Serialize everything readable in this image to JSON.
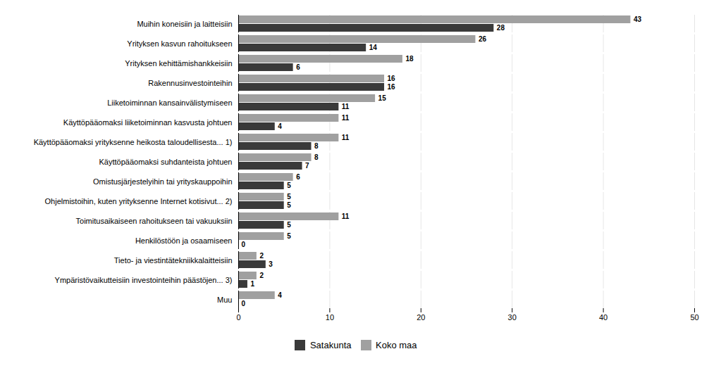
{
  "chart_data": {
    "type": "bar",
    "orientation": "horizontal",
    "categories": [
      "Muihin koneisiin ja laitteisiin",
      "Yrityksen kasvun rahoitukseen",
      "Yrityksen kehittämishankkeisiin",
      "Rakennusinvestointeihin",
      "Liiketoiminnan kansainvälistymiseen",
      "Käyttöpääomaksi liiketoiminnan kasvusta johtuen",
      "Käyttöpääomaksi yrityksenne heikosta taloudellisesta... 1)",
      "Käyttöpääomaksi suhdanteista johtuen",
      "Omistusjärjestelyihin tai yrityskauppoihin",
      "Ohjelmistoihin, kuten yrityksenne Internet kotisivut... 2)",
      "Toimitusaikaiseen rahoitukseen tai vakuuksiin",
      "Henkilöstöön ja osaamiseen",
      "Tieto- ja viestintätekniikkalaitteisiin",
      "Ympäristövaikutteisiin investointeihin päästöjen... 3)",
      "Muu"
    ],
    "series": [
      {
        "name": "Satakunta",
        "color": "#3a3a3a",
        "values": [
          28,
          14,
          6,
          16,
          11,
          4,
          8,
          7,
          5,
          5,
          5,
          0,
          3,
          1,
          0
        ]
      },
      {
        "name": "Koko maa",
        "color": "#a0a0a0",
        "values": [
          43,
          26,
          18,
          16,
          15,
          11,
          11,
          8,
          6,
          5,
          11,
          5,
          2,
          2,
          4
        ]
      }
    ],
    "xlim": [
      0,
      50
    ],
    "xticks": [
      0,
      10,
      20,
      30,
      40,
      50
    ],
    "grid": true,
    "data_labels": true,
    "legend": "bottom"
  }
}
